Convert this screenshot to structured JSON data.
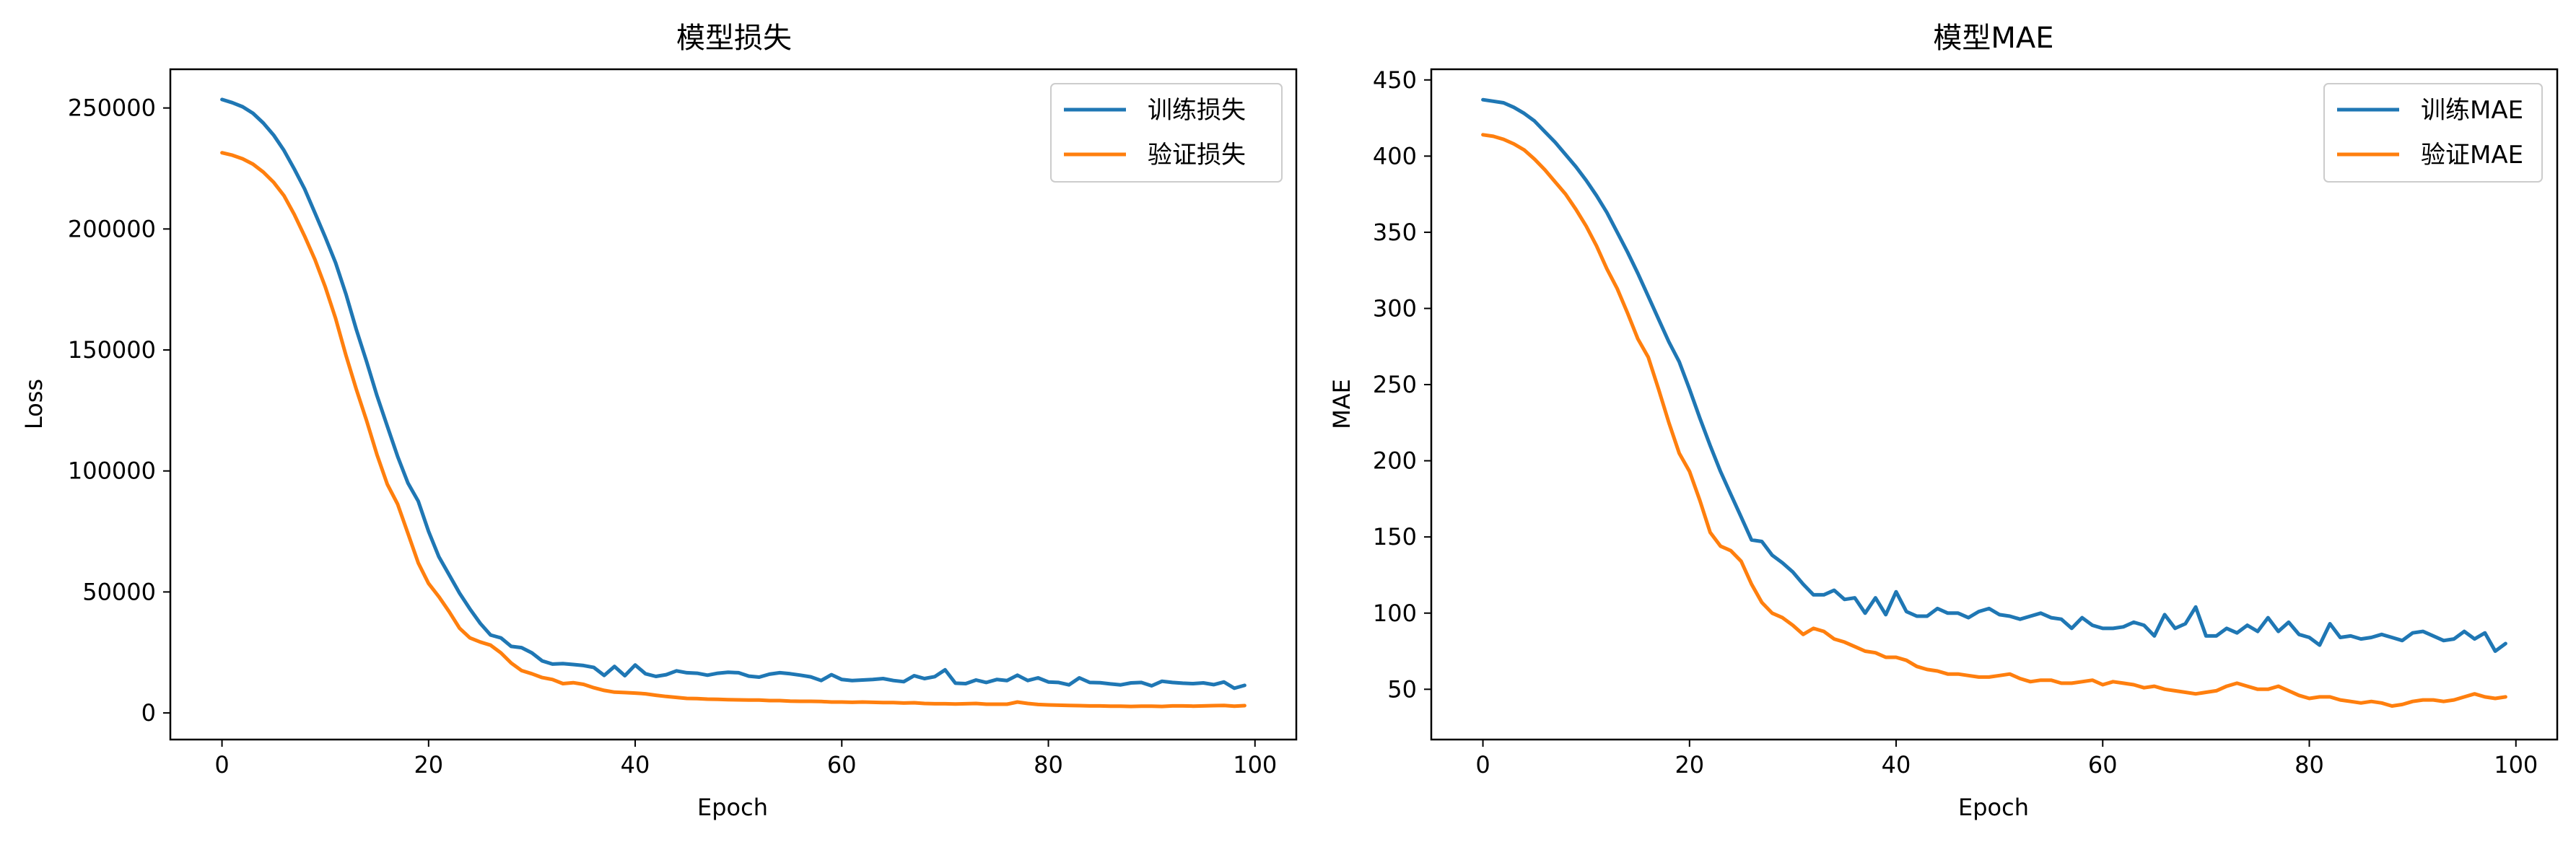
{
  "chart_data": [
    {
      "type": "line",
      "title": "模型损失",
      "xlabel": "Epoch",
      "ylabel": "Loss",
      "xlim": [
        -5,
        104
      ],
      "ylim": [
        -11000,
        266000
      ],
      "xticks": [
        0,
        20,
        40,
        60,
        80,
        100
      ],
      "yticks": [
        0,
        50000,
        100000,
        150000,
        200000,
        250000
      ],
      "legend_position": "top-right",
      "grid": false,
      "series": [
        {
          "name": "训练损失",
          "color": "#1f77b4",
          "values": [
            253500,
            252200,
            250500,
            247800,
            243800,
            238800,
            232500,
            224800,
            216500,
            206600,
            196600,
            186000,
            173100,
            158500,
            145200,
            131200,
            118500,
            106000,
            95000,
            87500,
            75000,
            64500,
            57000,
            49500,
            43000,
            37000,
            32200,
            31000,
            27500,
            27000,
            24800,
            21500,
            20200,
            20400,
            20000,
            19600,
            18800,
            15500,
            19200,
            15400,
            19800,
            16200,
            15100,
            15800,
            17400,
            16600,
            16400,
            15600,
            16400,
            16800,
            16600,
            15200,
            14800,
            16000,
            16600,
            16200,
            15600,
            14900,
            13400,
            15800,
            13800,
            13400,
            13600,
            13800,
            14200,
            13400,
            12900,
            15400,
            14200,
            15000,
            17800,
            12300,
            12100,
            13600,
            12600,
            13800,
            13400,
            15600,
            13400,
            14500,
            12800,
            12600,
            11600,
            14500,
            12600,
            12500,
            12000,
            11600,
            12400,
            12600,
            11200,
            13100,
            12600,
            12300,
            12100,
            12400,
            11700,
            12800,
            10200,
            11400
          ]
        },
        {
          "name": "验证损失",
          "color": "#ff7f0e",
          "values": [
            231500,
            230500,
            229000,
            226800,
            223500,
            219300,
            213800,
            206000,
            197000,
            187300,
            176000,
            163000,
            147800,
            133800,
            120800,
            106800,
            94500,
            86300,
            74200,
            62000,
            53500,
            48000,
            41800,
            35000,
            31000,
            29300,
            28000,
            24800,
            20600,
            17500,
            16200,
            14600,
            13800,
            12100,
            12500,
            11800,
            10400,
            9300,
            8600,
            8400,
            8200,
            7900,
            7300,
            6800,
            6400,
            6000,
            5900,
            5700,
            5600,
            5500,
            5400,
            5300,
            5300,
            5100,
            5100,
            4900,
            4800,
            4800,
            4700,
            4500,
            4500,
            4400,
            4500,
            4400,
            4300,
            4300,
            4100,
            4200,
            3900,
            3800,
            3800,
            3700,
            3800,
            3900,
            3600,
            3600,
            3600,
            4500,
            3900,
            3500,
            3300,
            3200,
            3100,
            3000,
            2900,
            2900,
            2800,
            2800,
            2700,
            2800,
            2800,
            2700,
            2900,
            2900,
            2800,
            2900,
            3000,
            3100,
            2800,
            3000
          ]
        }
      ]
    },
    {
      "type": "line",
      "title": "模型MAE",
      "xlabel": "Epoch",
      "ylabel": "MAE",
      "xlim": [
        -5,
        104
      ],
      "ylim": [
        17,
        457
      ],
      "xticks": [
        0,
        20,
        40,
        60,
        80,
        100
      ],
      "yticks": [
        50,
        100,
        150,
        200,
        250,
        300,
        350,
        400,
        450
      ],
      "legend_position": "top-right",
      "grid": false,
      "series": [
        {
          "name": "训练MAE",
          "color": "#1f77b4",
          "values": [
            437,
            436,
            435,
            432,
            428,
            423,
            416,
            409,
            401,
            393,
            384,
            374,
            363,
            350,
            337,
            323,
            308,
            293,
            278,
            265,
            247,
            228,
            210,
            193,
            178,
            163,
            148,
            147,
            138,
            133,
            127,
            119,
            112,
            112,
            115,
            109,
            110,
            100,
            110,
            99,
            114,
            101,
            98,
            98,
            103,
            100,
            100,
            97,
            101,
            103,
            99,
            98,
            96,
            98,
            100,
            97,
            96,
            90,
            97,
            92,
            90,
            90,
            91,
            94,
            92,
            85,
            99,
            90,
            93,
            104,
            85,
            85,
            90,
            87,
            92,
            88,
            97,
            88,
            94,
            86,
            84,
            79,
            93,
            84,
            85,
            83,
            84,
            86,
            84,
            82,
            87,
            88,
            85,
            82,
            83,
            88,
            83,
            87,
            75,
            80
          ]
        },
        {
          "name": "验证MAE",
          "color": "#ff7f0e",
          "values": [
            414,
            413,
            411,
            408,
            404,
            398,
            391,
            383,
            375,
            365,
            354,
            341,
            326,
            313,
            297,
            280,
            268,
            247,
            225,
            205,
            193,
            174,
            153,
            144,
            141,
            134,
            119,
            107,
            100,
            97,
            92,
            86,
            90,
            88,
            83,
            81,
            78,
            75,
            74,
            71,
            71,
            69,
            65,
            63,
            62,
            60,
            60,
            59,
            58,
            58,
            59,
            60,
            57,
            55,
            56,
            56,
            54,
            54,
            55,
            56,
            53,
            55,
            54,
            53,
            51,
            52,
            50,
            49,
            48,
            47,
            48,
            49,
            52,
            54,
            52,
            50,
            50,
            52,
            49,
            46,
            44,
            45,
            45,
            43,
            42,
            41,
            42,
            41,
            39,
            40,
            42,
            43,
            43,
            42,
            43,
            45,
            47,
            45,
            44,
            45
          ]
        }
      ]
    }
  ]
}
